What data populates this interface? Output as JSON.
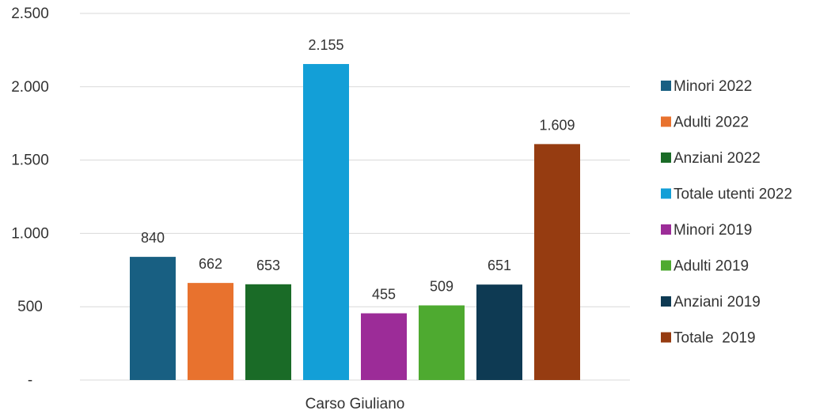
{
  "chart_data": {
    "type": "bar",
    "categories": [
      "Carso Giuliano"
    ],
    "series": [
      {
        "name": "Minori 2022",
        "values": [
          840
        ],
        "label": "840",
        "color": "#185f82"
      },
      {
        "name": "Adulti 2022",
        "values": [
          662
        ],
        "label": "662",
        "color": "#e8722e"
      },
      {
        "name": "Anziani 2022",
        "values": [
          653
        ],
        "label": "653",
        "color": "#1a6b27"
      },
      {
        "name": "Totale utenti 2022",
        "values": [
          2155
        ],
        "label": "2.155",
        "color": "#139fd7"
      },
      {
        "name": "Minori 2019",
        "values": [
          455
        ],
        "label": "455",
        "color": "#9c2c98"
      },
      {
        "name": "Adulti 2019",
        "values": [
          509
        ],
        "label": "509",
        "color": "#4eaa30"
      },
      {
        "name": "Anziani 2019",
        "values": [
          651
        ],
        "label": "651",
        "color": "#0e3a53"
      },
      {
        "name": "Totale  2019",
        "values": [
          1609
        ],
        "label": "1.609",
        "color": "#963c11"
      }
    ],
    "yticks": [
      {
        "value": 0,
        "label": "-"
      },
      {
        "value": 500,
        "label": "500"
      },
      {
        "value": 1000,
        "label": "1.000"
      },
      {
        "value": 1500,
        "label": "1.500"
      },
      {
        "value": 2000,
        "label": "2.000"
      },
      {
        "value": 2500,
        "label": "2.500"
      }
    ],
    "ylim": [
      0,
      2500
    ],
    "grid": true,
    "legend": "right",
    "gridline_color": "#d9d9d9"
  }
}
